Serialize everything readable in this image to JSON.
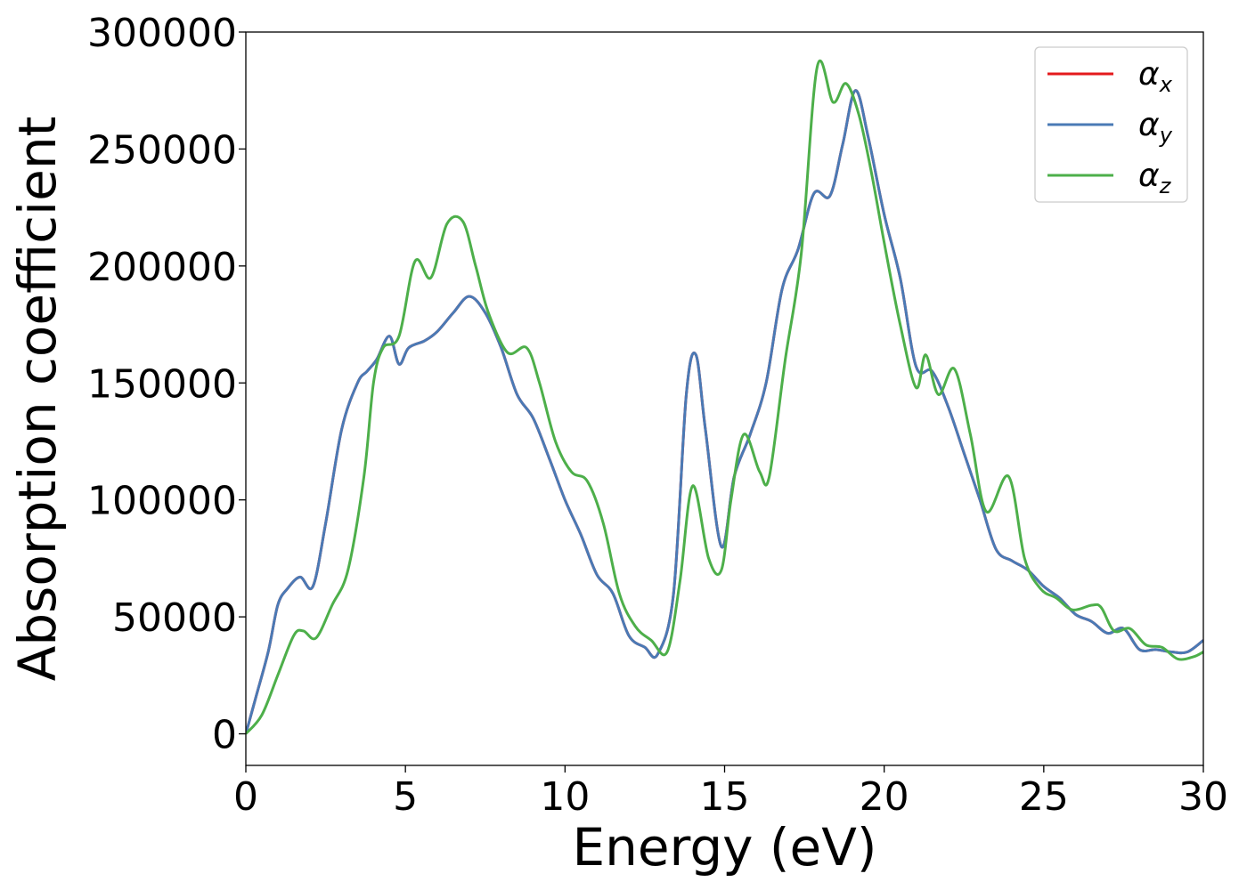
{
  "chart_data": {
    "type": "line",
    "xlabel": "Energy (eV)",
    "ylabel": "Absorption coefficient",
    "xlim": [
      0,
      30
    ],
    "ylim": [
      -13500,
      300000
    ],
    "x_ticks": [
      0,
      5,
      10,
      15,
      20,
      25,
      30
    ],
    "x_tick_labels": [
      "0",
      "5",
      "10",
      "15",
      "20",
      "25",
      "30"
    ],
    "y_ticks": [
      0,
      50000,
      100000,
      150000,
      200000,
      250000,
      300000
    ],
    "y_tick_labels": [
      "0",
      "50000",
      "100000",
      "150000",
      "200000",
      "250000",
      "300000"
    ],
    "grid": false,
    "legend_position": "top-right",
    "series": [
      {
        "name": "α_x",
        "symbol": "α",
        "subscript": "x",
        "color": "#e41a1c",
        "x": [
          0,
          0.3,
          0.7,
          1.0,
          1.3,
          1.7,
          2.1,
          2.5,
          3.0,
          3.5,
          3.8,
          4.1,
          4.5,
          4.8,
          5.1,
          5.6,
          6.0,
          6.5,
          7.0,
          7.5,
          8.0,
          8.5,
          9.0,
          9.5,
          10.0,
          10.5,
          11.0,
          11.5,
          12.0,
          12.5,
          12.9,
          13.4,
          13.8,
          14.1,
          14.4,
          14.9,
          15.3,
          15.8,
          16.3,
          16.8,
          17.3,
          17.8,
          18.3,
          18.7,
          19.1,
          19.5,
          20.0,
          20.5,
          21.0,
          21.5,
          22.0,
          22.5,
          23.0,
          23.5,
          24.0,
          24.5,
          25.0,
          25.5,
          26.0,
          26.5,
          27.0,
          27.5,
          28.0,
          28.5,
          29.0,
          29.5,
          30.0
        ],
        "values": [
          0,
          15000,
          35000,
          55000,
          62000,
          67000,
          63000,
          90000,
          130000,
          150000,
          155000,
          160000,
          170000,
          158000,
          165000,
          168000,
          172000,
          180000,
          187000,
          180000,
          165000,
          145000,
          135000,
          118000,
          100000,
          85000,
          68000,
          60000,
          42000,
          37000,
          34000,
          60000,
          145000,
          162000,
          130000,
          80000,
          110000,
          128000,
          150000,
          190000,
          207000,
          231000,
          230000,
          252000,
          275000,
          255000,
          222000,
          195000,
          157000,
          155000,
          140000,
          120000,
          100000,
          79000,
          74000,
          70000,
          63000,
          58000,
          51000,
          48000,
          43000,
          45000,
          36000,
          36000,
          35000,
          35000,
          40000
        ]
      },
      {
        "name": "α_y",
        "symbol": "α",
        "subscript": "y",
        "color": "#4a7ab5",
        "x": [
          0,
          0.3,
          0.7,
          1.0,
          1.3,
          1.7,
          2.1,
          2.5,
          3.0,
          3.5,
          3.8,
          4.1,
          4.5,
          4.8,
          5.1,
          5.6,
          6.0,
          6.5,
          7.0,
          7.5,
          8.0,
          8.5,
          9.0,
          9.5,
          10.0,
          10.5,
          11.0,
          11.5,
          12.0,
          12.5,
          12.9,
          13.4,
          13.8,
          14.1,
          14.4,
          14.9,
          15.3,
          15.8,
          16.3,
          16.8,
          17.3,
          17.8,
          18.3,
          18.7,
          19.1,
          19.5,
          20.0,
          20.5,
          21.0,
          21.5,
          22.0,
          22.5,
          23.0,
          23.5,
          24.0,
          24.5,
          25.0,
          25.5,
          26.0,
          26.5,
          27.0,
          27.5,
          28.0,
          28.5,
          29.0,
          29.5,
          30.0
        ],
        "values": [
          0,
          15000,
          35000,
          55000,
          62000,
          67000,
          63000,
          90000,
          130000,
          150000,
          155000,
          160000,
          170000,
          158000,
          165000,
          168000,
          172000,
          180000,
          187000,
          180000,
          165000,
          145000,
          135000,
          118000,
          100000,
          85000,
          68000,
          60000,
          42000,
          37000,
          34000,
          60000,
          145000,
          162000,
          130000,
          80000,
          110000,
          128000,
          150000,
          190000,
          207000,
          231000,
          230000,
          252000,
          275000,
          255000,
          222000,
          195000,
          157000,
          155000,
          140000,
          120000,
          100000,
          79000,
          74000,
          70000,
          63000,
          58000,
          51000,
          48000,
          43000,
          45000,
          36000,
          36000,
          35000,
          35000,
          40000
        ]
      },
      {
        "name": "α_z",
        "symbol": "α",
        "subscript": "z",
        "color": "#4daf4a",
        "x": [
          0,
          0.5,
          1.0,
          1.5,
          1.8,
          2.2,
          2.7,
          3.2,
          3.7,
          4.0,
          4.3,
          4.8,
          5.3,
          5.8,
          6.3,
          6.8,
          7.2,
          7.6,
          8.2,
          8.8,
          9.2,
          9.7,
          10.2,
          10.7,
          11.2,
          11.7,
          12.2,
          12.7,
          13.2,
          13.6,
          14.0,
          14.5,
          14.9,
          15.2,
          15.6,
          16.1,
          16.4,
          16.9,
          17.4,
          17.9,
          18.4,
          18.8,
          19.2,
          19.6,
          20.0,
          20.5,
          21.0,
          21.3,
          21.7,
          22.2,
          22.7,
          23.2,
          23.9,
          24.4,
          24.9,
          25.4,
          25.9,
          26.5,
          26.8,
          27.2,
          27.7,
          28.2,
          28.7,
          29.2,
          29.7,
          30.0
        ],
        "values": [
          0,
          8000,
          25000,
          42000,
          44000,
          41000,
          55000,
          70000,
          110000,
          150000,
          165000,
          170000,
          202000,
          195000,
          218000,
          219000,
          200000,
          180000,
          163000,
          165000,
          150000,
          125000,
          112000,
          108000,
          90000,
          60000,
          46000,
          40000,
          35000,
          65000,
          106000,
          75000,
          70000,
          100000,
          128000,
          112000,
          110000,
          160000,
          205000,
          285000,
          270000,
          278000,
          265000,
          240000,
          210000,
          175000,
          148000,
          162000,
          145000,
          156000,
          128000,
          95000,
          110000,
          75000,
          62000,
          58000,
          53000,
          55000,
          54000,
          44000,
          45000,
          38000,
          37000,
          32000,
          33000,
          35000
        ]
      }
    ]
  }
}
